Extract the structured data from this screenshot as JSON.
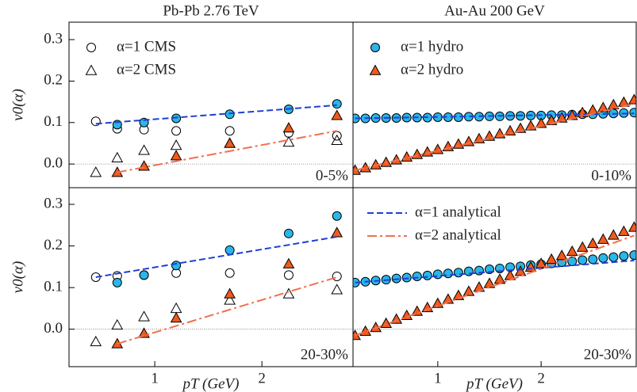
{
  "chart_data": [
    {
      "type": "scatter",
      "title": "Pb-Pb 2.76 TeV",
      "ylabel": "v0(α)",
      "annotation": "0-5%",
      "legend": "upper left",
      "xlim": [
        0.2,
        2.85
      ],
      "ylim": [
        -0.057,
        0.342
      ],
      "yticks": [
        {
          "value": 0,
          "label": "0.0"
        },
        0.1,
        0.2,
        0.3
      ],
      "hline": 0,
      "series": [
        {
          "name": "α=1 CMS",
          "marker": "open-circle",
          "color": "#000000",
          "x": [
            0.45,
            0.65,
            0.9,
            1.2,
            1.7,
            2.25,
            2.7
          ],
          "values": [
            0.103,
            0.085,
            0.083,
            0.08,
            0.08,
            0.075,
            0.068
          ]
        },
        {
          "name": "α=2 CMS",
          "marker": "open-triangle",
          "color": "#000000",
          "x": [
            0.45,
            0.65,
            0.9,
            1.2,
            1.7,
            2.25,
            2.7
          ],
          "values": [
            -0.02,
            0.015,
            0.033,
            0.045,
            0.05,
            0.053,
            0.057
          ]
        },
        {
          "marker": "circle",
          "color": "#29b6e8",
          "x": [
            0.65,
            0.9,
            1.2,
            1.7,
            2.25,
            2.7
          ],
          "values": [
            0.095,
            0.1,
            0.11,
            0.12,
            0.132,
            0.145
          ]
        },
        {
          "marker": "triangle",
          "color": "#f05a1e",
          "x": [
            0.65,
            0.9,
            1.2,
            1.7,
            2.25,
            2.7
          ],
          "values": [
            -0.02,
            -0.005,
            0.02,
            0.05,
            0.087,
            0.117
          ]
        },
        {
          "marker": "dashed-line",
          "color": "#1f3fd6",
          "x": [
            0.45,
            2.7
          ],
          "values": [
            0.097,
            0.142
          ]
        },
        {
          "marker": "dashdot-line",
          "color": "#f07050",
          "x": [
            0.65,
            2.7
          ],
          "values": [
            -0.02,
            0.08
          ]
        }
      ]
    },
    {
      "type": "scatter",
      "title": "Au-Au 200 GeV",
      "annotation": "0-10%",
      "legend": "upper left",
      "xlim": [
        0.18,
        2.92
      ],
      "ylim": [
        -0.057,
        0.342
      ],
      "hline": 0,
      "series": [
        {
          "name": "α=1 hydro",
          "marker": "circle",
          "color": "#29b6e8",
          "x": [
            0.2,
            0.3,
            0.4,
            0.5,
            0.6,
            0.7,
            0.8,
            0.9,
            1.0,
            1.1,
            1.2,
            1.3,
            1.4,
            1.5,
            1.6,
            1.7,
            1.8,
            1.9,
            2.0,
            2.1,
            2.2,
            2.3,
            2.4,
            2.5,
            2.6,
            2.7,
            2.8,
            2.9
          ],
          "values": [
            0.11,
            0.11,
            0.111,
            0.111,
            0.111,
            0.112,
            0.112,
            0.112,
            0.113,
            0.113,
            0.113,
            0.114,
            0.114,
            0.115,
            0.115,
            0.116,
            0.116,
            0.117,
            0.117,
            0.118,
            0.118,
            0.119,
            0.12,
            0.12,
            0.121,
            0.122,
            0.123,
            0.124
          ]
        },
        {
          "name": "α=2 hydro",
          "marker": "triangle",
          "color": "#f05a1e",
          "x": [
            0.2,
            0.3,
            0.4,
            0.5,
            0.6,
            0.7,
            0.8,
            0.9,
            1.0,
            1.1,
            1.2,
            1.3,
            1.4,
            1.5,
            1.6,
            1.7,
            1.8,
            1.9,
            2.0,
            2.1,
            2.2,
            2.3,
            2.4,
            2.5,
            2.6,
            2.7,
            2.8,
            2.9
          ],
          "values": [
            -0.015,
            -0.009,
            -0.002,
            0.004,
            0.01,
            0.017,
            0.023,
            0.029,
            0.035,
            0.042,
            0.048,
            0.054,
            0.061,
            0.067,
            0.073,
            0.08,
            0.086,
            0.092,
            0.098,
            0.105,
            0.111,
            0.117,
            0.124,
            0.13,
            0.136,
            0.143,
            0.149,
            0.155
          ]
        },
        {
          "marker": "dashed-line",
          "color": "#1f3fd6",
          "x": [
            0.2,
            2.9
          ],
          "values": [
            0.11,
            0.122
          ]
        },
        {
          "marker": "dashdot-line",
          "color": "#f07050",
          "x": [
            0.2,
            2.9
          ],
          "values": [
            -0.015,
            0.145
          ]
        }
      ]
    },
    {
      "type": "scatter",
      "ylabel": "v0(α)",
      "xlabel": "pT (GeV)",
      "annotation": "20-30%",
      "xlim": [
        0.2,
        2.85
      ],
      "ylim": [
        -0.09,
        0.34
      ],
      "xticks": [
        1,
        2
      ],
      "yticks": [
        {
          "value": 0,
          "label": "0.0"
        },
        0.1,
        0.2,
        0.3
      ],
      "hline": 0,
      "series": [
        {
          "marker": "open-circle",
          "color": "#000000",
          "x": [
            0.45,
            0.65,
            0.9,
            1.2,
            1.7,
            2.25,
            2.7
          ],
          "values": [
            0.125,
            0.128,
            0.13,
            0.135,
            0.135,
            0.13,
            0.127
          ]
        },
        {
          "marker": "open-triangle",
          "color": "#000000",
          "x": [
            0.45,
            0.65,
            0.9,
            1.2,
            1.7,
            2.25,
            2.7
          ],
          "values": [
            -0.03,
            0.01,
            0.03,
            0.05,
            0.07,
            0.085,
            0.095
          ]
        },
        {
          "marker": "circle",
          "color": "#29b6e8",
          "x": [
            0.65,
            0.9,
            1.2,
            1.7,
            2.25,
            2.7
          ],
          "values": [
            0.112,
            0.13,
            0.153,
            0.19,
            0.23,
            0.272
          ]
        },
        {
          "marker": "triangle",
          "color": "#f05a1e",
          "x": [
            0.65,
            0.9,
            1.2,
            1.7,
            2.25,
            2.7
          ],
          "values": [
            -0.035,
            -0.01,
            0.027,
            0.085,
            0.157,
            0.232
          ]
        },
        {
          "marker": "dashed-line",
          "color": "#1f3fd6",
          "x": [
            0.45,
            2.7
          ],
          "values": [
            0.125,
            0.222
          ]
        },
        {
          "marker": "dashdot-line",
          "color": "#f07050",
          "x": [
            0.65,
            2.7
          ],
          "values": [
            -0.035,
            0.125
          ]
        }
      ]
    },
    {
      "type": "scatter",
      "xlabel": "pT (GeV)",
      "annotation": "20-30%",
      "legend": "upper left",
      "xlim": [
        0.18,
        2.92
      ],
      "ylim": [
        -0.09,
        0.34
      ],
      "xticks": [
        1,
        2
      ],
      "hline": 0,
      "series": [
        {
          "marker": "circle",
          "color": "#29b6e8",
          "x": [
            0.2,
            0.3,
            0.4,
            0.5,
            0.6,
            0.7,
            0.8,
            0.9,
            1.0,
            1.1,
            1.2,
            1.3,
            1.4,
            1.5,
            1.6,
            1.7,
            1.8,
            1.9,
            2.0,
            2.1,
            2.2,
            2.3,
            2.4,
            2.5,
            2.6,
            2.7,
            2.8,
            2.9
          ],
          "values": [
            0.112,
            0.114,
            0.117,
            0.119,
            0.122,
            0.124,
            0.127,
            0.129,
            0.132,
            0.134,
            0.136,
            0.139,
            0.141,
            0.144,
            0.146,
            0.149,
            0.151,
            0.154,
            0.156,
            0.158,
            0.161,
            0.163,
            0.166,
            0.168,
            0.171,
            0.173,
            0.176,
            0.178
          ]
        },
        {
          "marker": "triangle",
          "color": "#f05a1e",
          "x": [
            0.2,
            0.3,
            0.4,
            0.5,
            0.6,
            0.7,
            0.8,
            0.9,
            1.0,
            1.1,
            1.2,
            1.3,
            1.4,
            1.5,
            1.6,
            1.7,
            1.8,
            1.9,
            2.0,
            2.1,
            2.2,
            2.3,
            2.4,
            2.5,
            2.6,
            2.7,
            2.8,
            2.9
          ],
          "values": [
            -0.015,
            -0.005,
            0.004,
            0.014,
            0.024,
            0.033,
            0.043,
            0.052,
            0.062,
            0.072,
            0.081,
            0.091,
            0.101,
            0.11,
            0.12,
            0.129,
            0.139,
            0.149,
            0.158,
            0.168,
            0.177,
            0.187,
            0.197,
            0.206,
            0.216,
            0.226,
            0.235,
            0.245
          ]
        },
        {
          "name": "α=1 analytical",
          "marker": "dashed-line",
          "color": "#1f3fd6",
          "x": [
            0.2,
            2.9
          ],
          "values": [
            0.112,
            0.165
          ]
        },
        {
          "name": "α=2 analytical",
          "marker": "dashdot-line",
          "color": "#f07050",
          "x": [
            0.2,
            2.9
          ],
          "values": [
            -0.015,
            0.225
          ]
        }
      ]
    }
  ]
}
